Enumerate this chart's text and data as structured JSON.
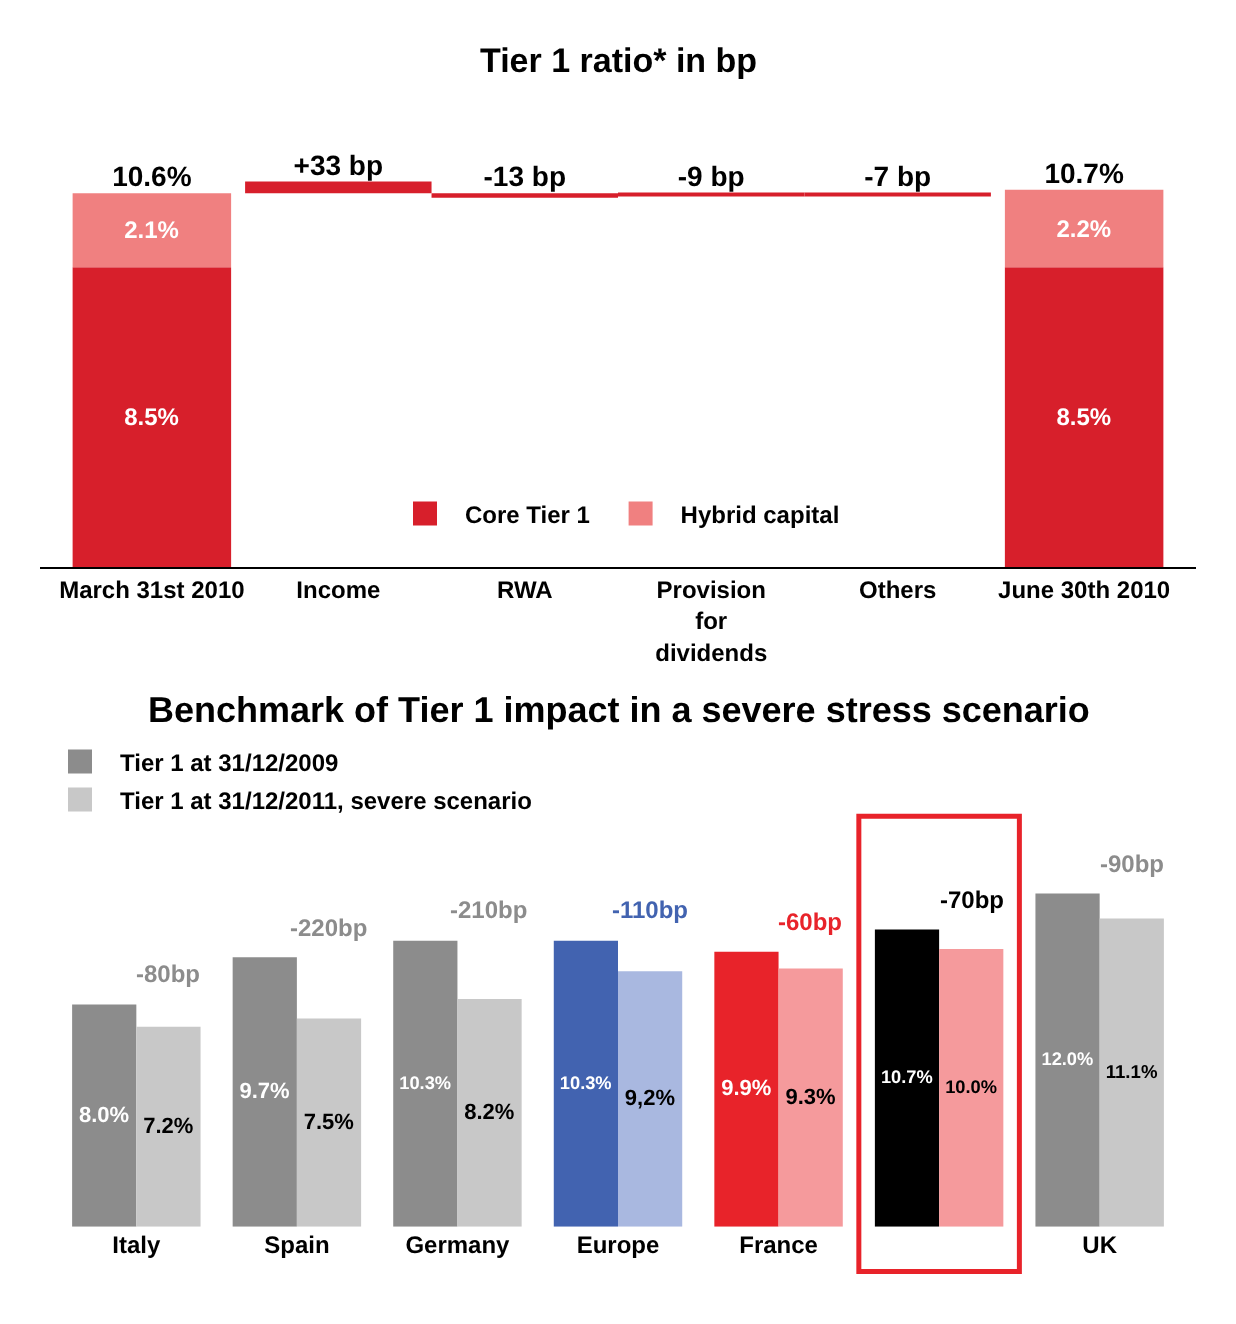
{
  "chart_data": [
    {
      "type": "bar",
      "title": "Tier 1 ratio* in bp",
      "stacked": true,
      "legend": "bottom",
      "categories": [
        "March 31st 2010",
        "Income",
        "RWA",
        "Provision for dividends",
        "Others",
        "June 30th 2010"
      ],
      "series": [
        {
          "name": "Core Tier 1",
          "color": "#d71f2b",
          "values": [
            8.5,
            null,
            null,
            null,
            null,
            8.5
          ],
          "value_labels": [
            "8.5%",
            null,
            null,
            null,
            null,
            "8.5%"
          ]
        },
        {
          "name": "Hybrid capital",
          "color": "#f08080",
          "values": [
            2.1,
            null,
            null,
            null,
            null,
            2.2
          ],
          "value_labels": [
            "2.1%",
            null,
            null,
            null,
            null,
            "2.2%"
          ]
        },
        {
          "color": "#d71f2b",
          "axis": "y2",
          "values": [
            null,
            33,
            -13,
            -9,
            -7,
            null
          ],
          "value_labels": [
            null,
            "+33 bp",
            "-13 bp",
            "-9 bp",
            "-7 bp",
            null
          ]
        }
      ],
      "totals": [
        "10.6%",
        null,
        null,
        null,
        null,
        "10.7%"
      ]
    },
    {
      "type": "bar",
      "title": "Benchmark of Tier 1 impact in a severe stress scenario",
      "legend": "top left",
      "categories": [
        "Italy",
        "Spain",
        "Germany",
        "Europe",
        "France",
        null,
        "UK"
      ],
      "series": [
        {
          "name": "Tier 1 at 31/12/2009",
          "colors": [
            "#8c8c8c",
            "#8c8c8c",
            "#8c8c8c",
            "#4263b0",
            "#e8232a",
            "#000000",
            "#8c8c8c"
          ],
          "values": [
            8.0,
            9.7,
            10.3,
            10.3,
            9.9,
            10.7,
            12.0
          ],
          "value_labels": [
            "8.0%",
            "9.7%",
            "10.3%",
            "10.3%",
            "9.9%",
            "10.7%",
            "12.0%"
          ]
        },
        {
          "name": "Tier 1 at 31/12/2011, severe scenario",
          "colors": [
            "#c8c8c8",
            "#c8c8c8",
            "#c8c8c8",
            "#a9b8e0",
            "#f59a9c",
            "#f59a9c",
            "#c8c8c8"
          ],
          "values": [
            7.2,
            7.5,
            8.2,
            9.2,
            9.3,
            10.0,
            11.1
          ],
          "value_labels": [
            "7.2%",
            "7.5%",
            "8.2%",
            "9,2%",
            "9.3%",
            "10.0%",
            "11.1%"
          ]
        }
      ],
      "annotations": [
        {
          "text": "-80bp",
          "x": "Italy",
          "y": 8.0
        },
        {
          "text": "-220bp",
          "x": "Spain",
          "y": 9.7
        },
        {
          "text": "-210bp",
          "x": "Germany",
          "y": 10.3
        },
        {
          "text": "-110bp",
          "x": "Europe",
          "y": 10.3
        },
        {
          "text": "-60bp",
          "x": "France",
          "y": 9.9
        },
        "-70bp",
        {
          "text": "-90bp",
          "x": "UK",
          "y": 12.0
        }
      ]
    }
  ]
}
